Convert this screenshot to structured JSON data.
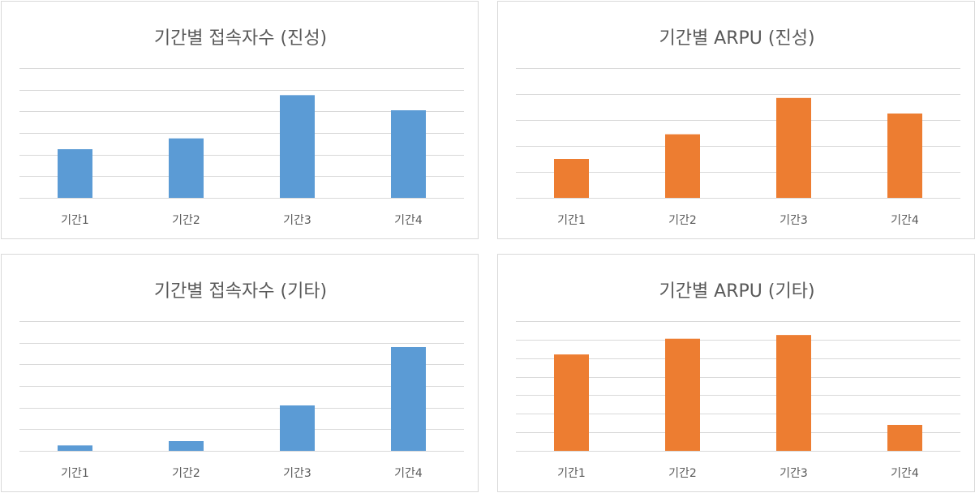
{
  "chart_data": [
    {
      "type": "bar",
      "title": "기간별 접속자수 (진성)",
      "categories": [
        "기간1",
        "기간2",
        "기간3",
        "기간4"
      ],
      "values": [
        2.25,
        2.75,
        4.75,
        4.05
      ],
      "ylim": [
        0,
        6
      ],
      "grid": true,
      "color": "#5b9bd5"
    },
    {
      "type": "bar",
      "title": "기간별 ARPU (진성)",
      "categories": [
        "기간1",
        "기간2",
        "기간3",
        "기간4"
      ],
      "values": [
        1.5,
        2.45,
        3.85,
        3.25
      ],
      "ylim": [
        0,
        5
      ],
      "grid": true,
      "color": "#ed7d31"
    },
    {
      "type": "bar",
      "title": "기간별 접속자수 (기타)",
      "categories": [
        "기간1",
        "기간2",
        "기간3",
        "기간4"
      ],
      "values": [
        0.25,
        0.45,
        2.1,
        4.8
      ],
      "ylim": [
        0,
        6
      ],
      "grid": true,
      "color": "#5b9bd5"
    },
    {
      "type": "bar",
      "title": "기간별 ARPU (기타)",
      "categories": [
        "기간1",
        "기간2",
        "기간3",
        "기간4"
      ],
      "values": [
        5.2,
        6.05,
        6.25,
        1.4
      ],
      "ylim": [
        0,
        7
      ],
      "grid": true,
      "color": "#ed7d31"
    }
  ]
}
